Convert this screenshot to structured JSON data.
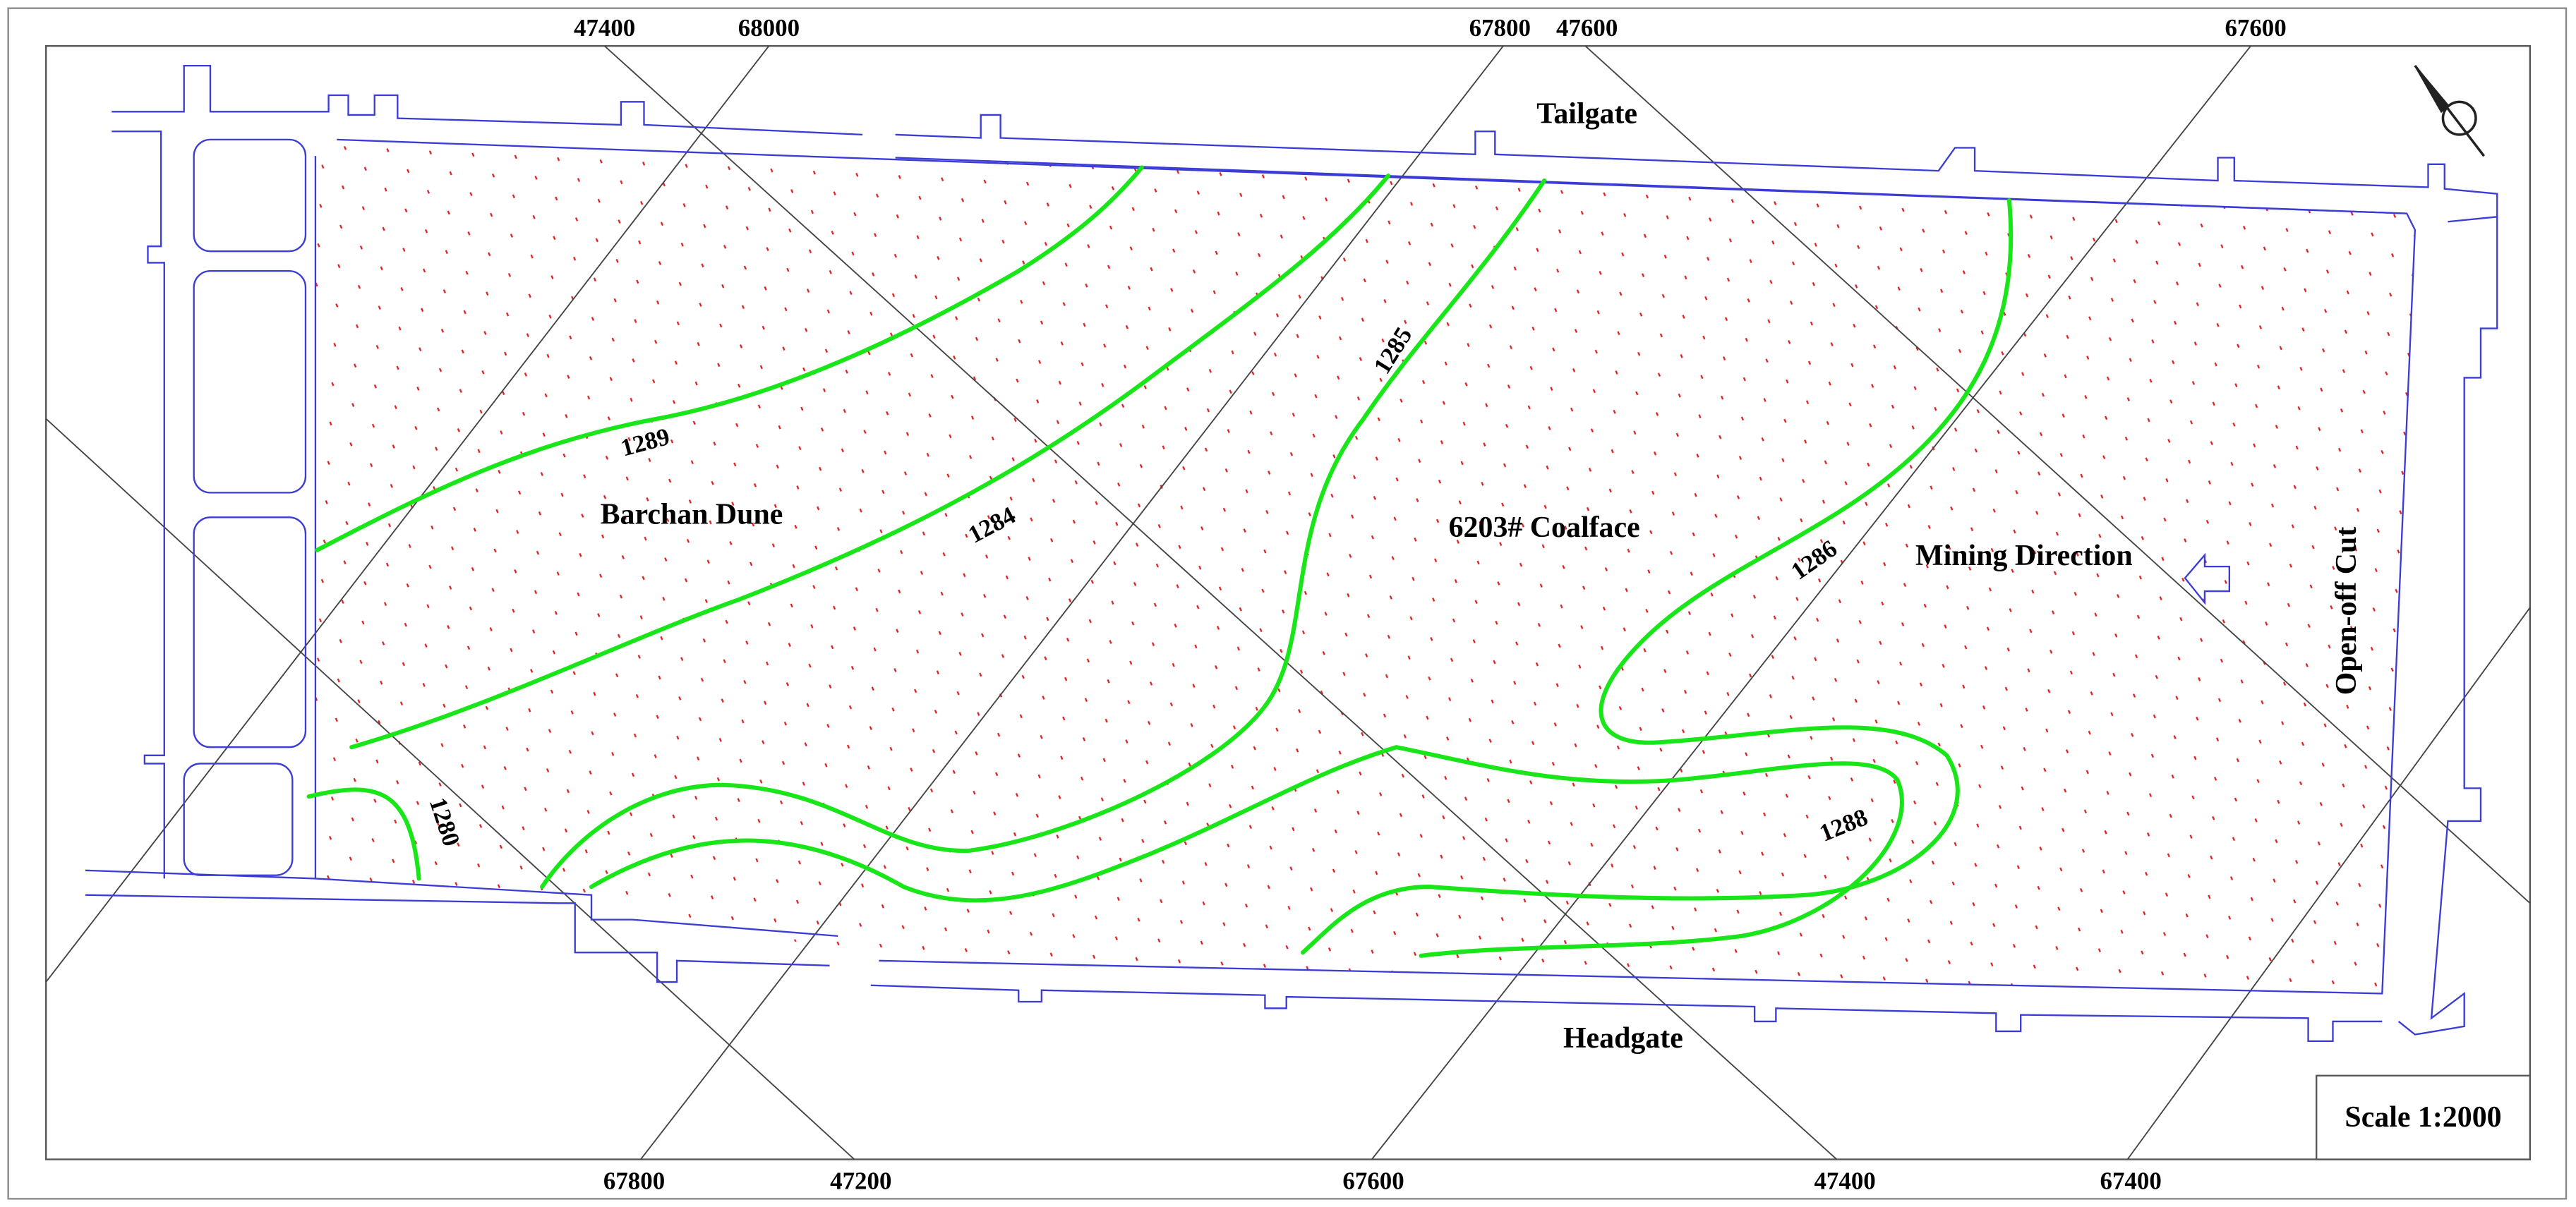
{
  "grid_labels": {
    "top": [
      47400,
      68000,
      67800,
      47600,
      67600
    ],
    "bottom": [
      67800,
      47200,
      67600,
      47400,
      67400
    ]
  },
  "labels": {
    "tailgate": "Tailgate",
    "headgate": "Headgate",
    "barchan_dune": "Barchan Dune",
    "coalface": "6203# Coalface",
    "mining_direction": "Mining Direction",
    "open_off_cut": "Open-off Cut"
  },
  "contours": [
    {
      "elevation": 1289
    },
    {
      "elevation": 1284
    },
    {
      "elevation": 1285
    },
    {
      "elevation": 1286
    },
    {
      "elevation": 1288
    },
    {
      "elevation": 1280
    }
  ],
  "scale": "Scale 1:2000"
}
